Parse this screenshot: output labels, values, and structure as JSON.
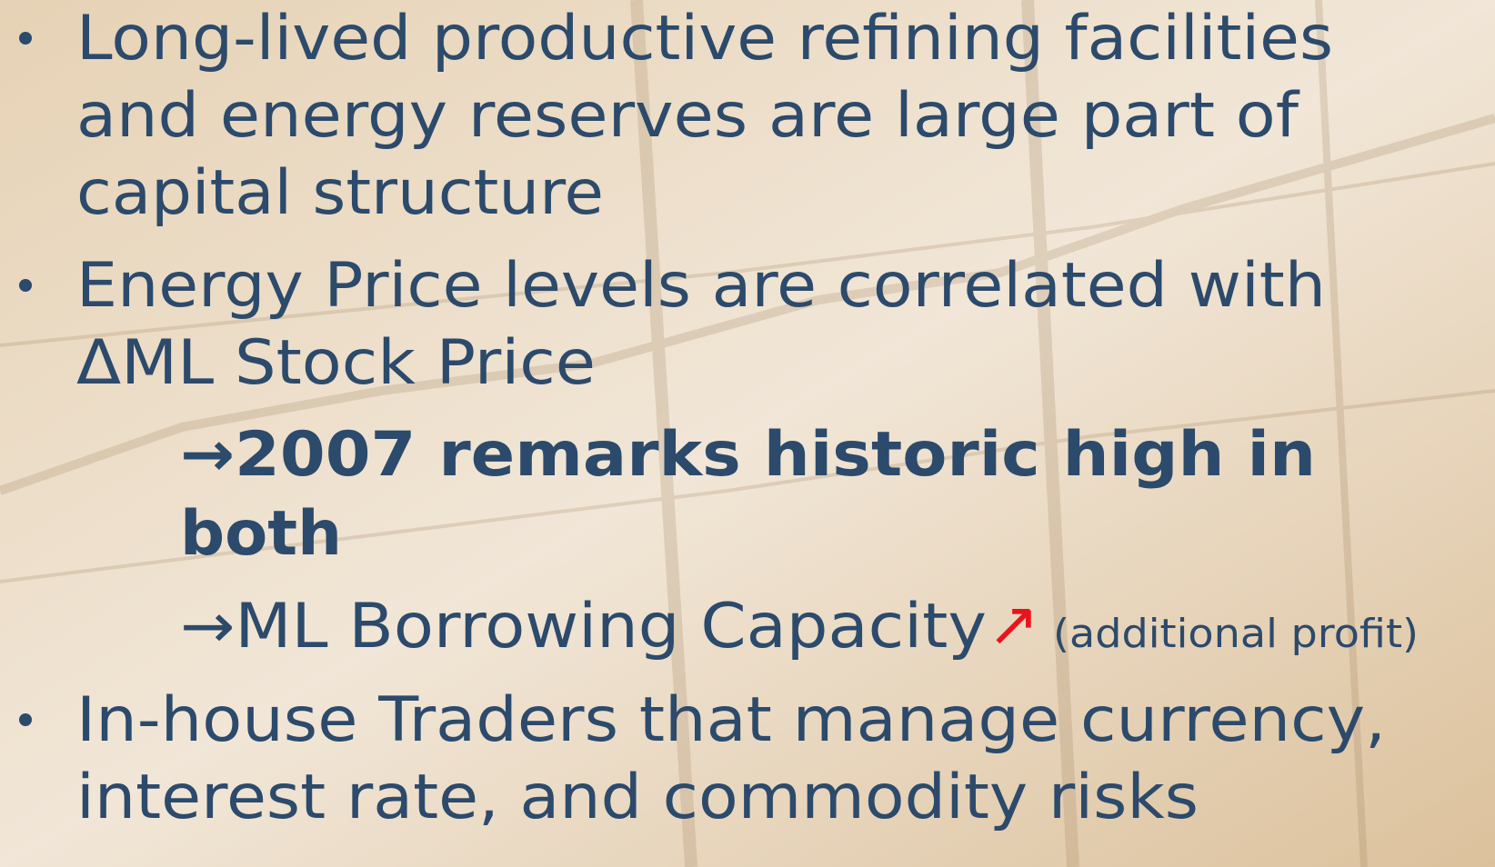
{
  "bullets": [
    {
      "lines": [
        "Long-lived productive refining facilities",
        "and energy reserves are large part of",
        "capital structure"
      ]
    },
    {
      "lines": [
        "Energy Price levels are correlated with",
        "ΔML Stock Price"
      ],
      "subitems": [
        {
          "lines": [
            "→2007 remarks historic high in",
            "both"
          ]
        },
        {
          "lines": [
            "→ML Borrowing Capacity"
          ],
          "arrow": "↗",
          "note": "(additional profit)"
        }
      ]
    },
    {
      "lines": [
        "In-house Traders that manage currency,",
        "interest rate, and commodity risks"
      ]
    }
  ]
}
